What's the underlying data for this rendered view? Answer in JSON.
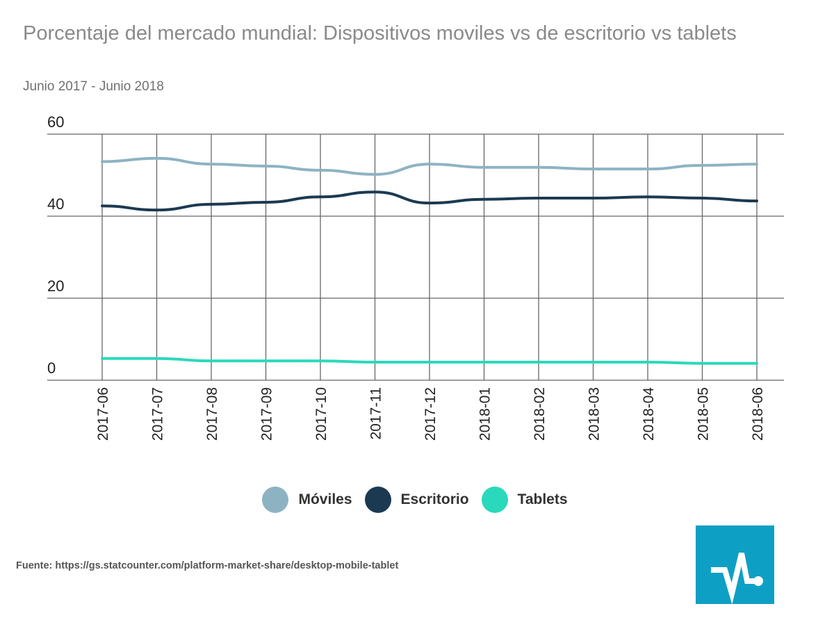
{
  "chart_data": {
    "type": "line",
    "title": "Porcentaje del mercado mundial: Dispositivos moviles vs de escritorio vs tablets",
    "subtitle": "Junio 2017 - Junio 2018",
    "xlabel": "",
    "ylabel": "",
    "categories": [
      "2017-06",
      "2017-07",
      "2017-08",
      "2017-09",
      "2017-10",
      "2017-11",
      "2017-12",
      "2018-01",
      "2018-02",
      "2018-03",
      "2018-04",
      "2018-05",
      "2018-06"
    ],
    "ylim": [
      0,
      60
    ],
    "yticks": [
      "0",
      "20",
      "40",
      "60"
    ],
    "grid": true,
    "legend_position": "bottom",
    "series": [
      {
        "name": "Móviles",
        "color": "#8db3c3",
        "values": [
          53.3,
          54.1,
          52.7,
          52.2,
          51.2,
          50.2,
          52.7,
          51.9,
          51.9,
          51.5,
          51.5,
          52.4,
          52.7
        ]
      },
      {
        "name": "Escritorio",
        "color": "#1b3a52",
        "values": [
          42.5,
          41.5,
          42.9,
          43.4,
          44.7,
          45.9,
          43.2,
          44.1,
          44.4,
          44.4,
          44.7,
          44.4,
          43.7
        ]
      },
      {
        "name": "Tablets",
        "color": "#2ad9bb",
        "values": [
          5.3,
          5.3,
          4.7,
          4.7,
          4.7,
          4.4,
          4.4,
          4.4,
          4.4,
          4.4,
          4.4,
          4.1,
          4.1
        ]
      }
    ]
  },
  "source": "Fuente: https://gs.statcounter.com/platform-market-share/desktop-mobile-tablet",
  "logo": {
    "name": "statcounter-pulse-logo",
    "color": "#0ea0c4"
  }
}
